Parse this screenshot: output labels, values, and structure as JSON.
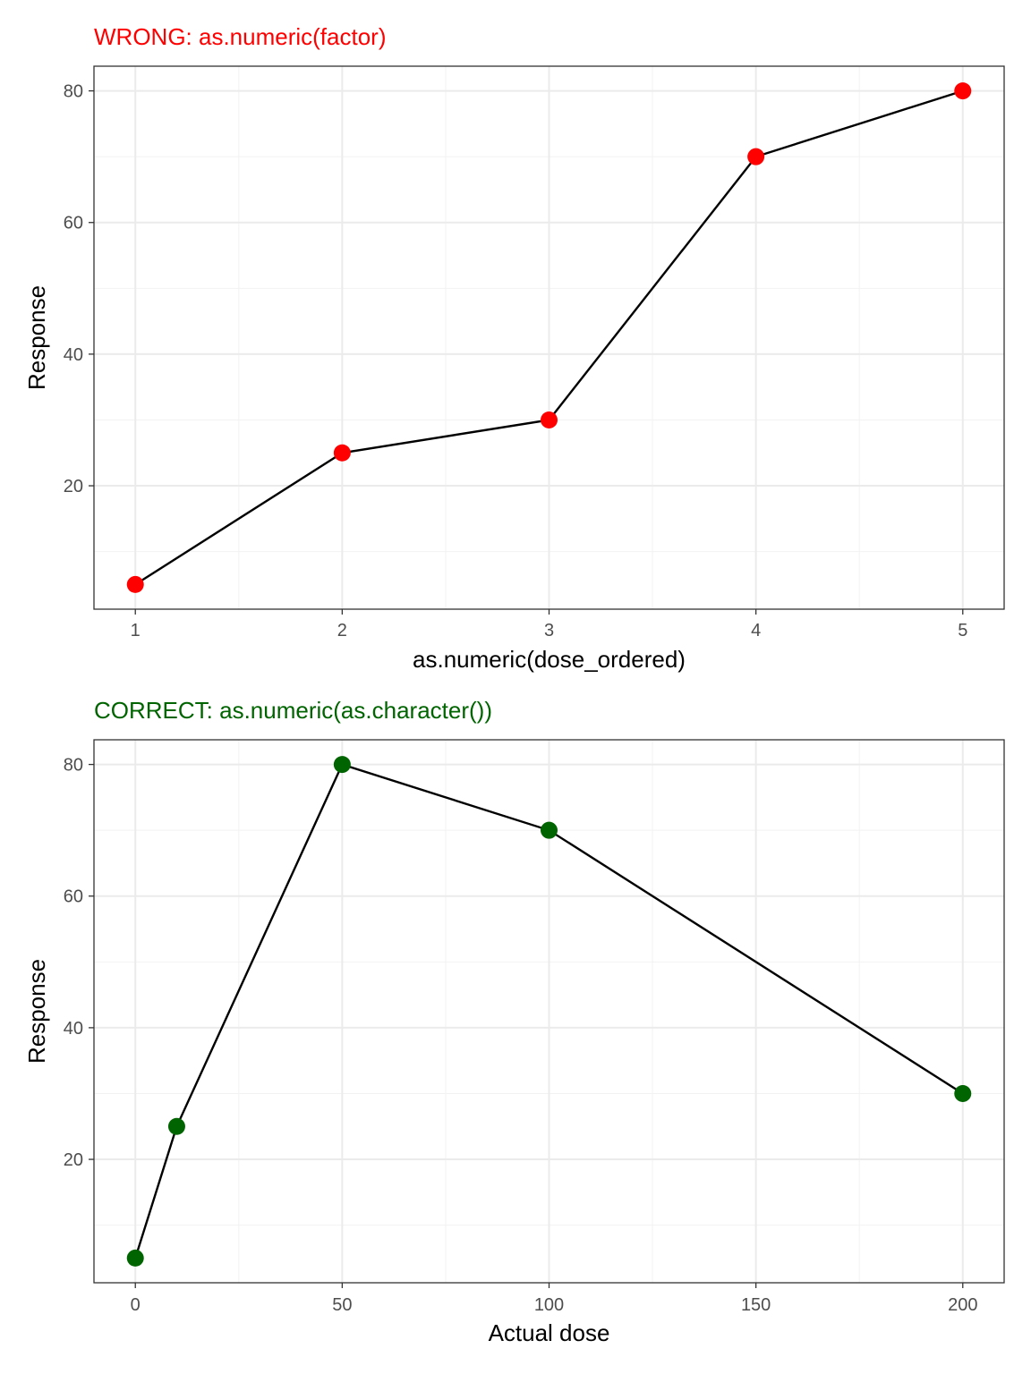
{
  "chart_data": [
    {
      "type": "line",
      "title": "WRONG: as.numeric(factor)",
      "title_color": "#ff0000",
      "point_color": "#ff0000",
      "line_color": "#000000",
      "xlabel": "as.numeric(dose_ordered)",
      "ylabel": "Response",
      "x": [
        1,
        2,
        3,
        4,
        5
      ],
      "y": [
        5,
        25,
        30,
        70,
        80
      ],
      "xlim": [
        0.8,
        5.2
      ],
      "ylim": [
        1.25,
        83.75
      ],
      "x_ticks": [
        1,
        2,
        3,
        4,
        5
      ],
      "x_minor": [
        1.5,
        2.5,
        3.5,
        4.5
      ],
      "y_ticks": [
        20,
        40,
        60,
        80
      ],
      "y_minor": [
        10,
        30,
        50,
        70
      ],
      "grid": true,
      "legend": "none"
    },
    {
      "type": "line",
      "title": "CORRECT: as.numeric(as.character())",
      "title_color": "#006400",
      "point_color": "#006400",
      "line_color": "#000000",
      "xlabel": "Actual dose",
      "ylabel": "Response",
      "x": [
        0,
        10,
        50,
        100,
        200
      ],
      "y": [
        5,
        25,
        80,
        70,
        30
      ],
      "xlim": [
        -10,
        210
      ],
      "ylim": [
        1.25,
        83.75
      ],
      "x_ticks": [
        0,
        50,
        100,
        150,
        200
      ],
      "x_minor": [
        25,
        75,
        125,
        175
      ],
      "y_ticks": [
        20,
        40,
        60,
        80
      ],
      "y_minor": [
        10,
        30,
        50,
        70
      ],
      "grid": true,
      "legend": "none"
    }
  ]
}
